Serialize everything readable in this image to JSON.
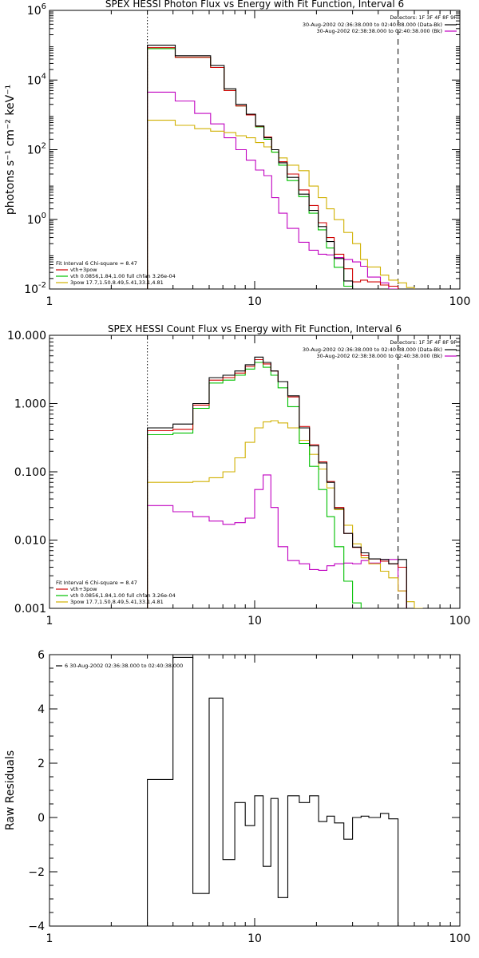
{
  "chart_data": [
    {
      "type": "line",
      "title": "SPEX HESSI Photon Flux vs Energy with Fit Function, Interval 6",
      "ylabel": "photons s⁻¹ cm⁻² keV⁻¹",
      "xscale": "log",
      "yscale": "log",
      "xlim": [
        1,
        100
      ],
      "ylim": [
        0.01,
        1000000
      ],
      "xticks": [
        "1",
        "10",
        "100"
      ],
      "yticks": [
        {
          "base": "10",
          "exp": "6",
          "value": 1000000
        },
        {
          "base": "10",
          "exp": "4",
          "value": 10000
        },
        {
          "base": "10",
          "exp": "2",
          "value": 100
        },
        {
          "base": "10",
          "exp": "0",
          "value": 1
        },
        {
          "base": "10",
          "exp": "-2",
          "value": 0.01
        }
      ],
      "vlines": [
        {
          "x": 3.0,
          "style": "dotted"
        },
        {
          "x": 50,
          "style": "dashed"
        }
      ],
      "legend_topright": {
        "header": "Detectors: 1F 3F 4F 8F 9F",
        "items": [
          {
            "label": "30-Aug-2002 02:36:38.000 to 02:40:38.000 (Data-Bk)",
            "color": "#000000"
          },
          {
            "label": "30-Aug-2002 02:38:38.000 to 02:40:38.000 (Bk)",
            "color": "#c000c0"
          }
        ]
      },
      "legend_bottomleft": {
        "header": "Fit Interval 6   Chi-square = 8.47",
        "items": [
          {
            "label": "vth+3pow",
            "color": "#d00000"
          },
          {
            "label": "vth 0.0856,1.84,1.00  full chfan 3.26e-04",
            "color": "#00c000"
          },
          {
            "label": "3pow 17.7,1.50,8.49,5.41,33.1,4.81",
            "color": "#d0b000"
          }
        ]
      },
      "edges": [
        3.0,
        3.6,
        4.1,
        5.1,
        6.1,
        7.1,
        8.1,
        9.1,
        10.1,
        11.1,
        12.1,
        13.1,
        14.4,
        16.4,
        18.4,
        20.4,
        22.4,
        24.4,
        27.2,
        30.0,
        32.8,
        35.5,
        41.0,
        45.0,
        50.0,
        55.0,
        60.0
      ],
      "series": [
        {
          "name": "data",
          "color": "#000000",
          "values": [
            100000,
            100000,
            50000,
            50000,
            26000,
            5600,
            2000,
            1050,
            480,
            220,
            100,
            42,
            16,
            5.3,
            1.8,
            0.62,
            0.23,
            0.075,
            0.017,
            0.0016,
            null,
            null,
            null,
            null,
            null,
            null
          ]
        },
        {
          "name": "vth+3pow",
          "color": "#d00000",
          "values": [
            85000,
            85000,
            45000,
            45000,
            23000,
            5000,
            1800,
            1000,
            470,
            230,
            100,
            45,
            20,
            7,
            2.5,
            0.8,
            0.3,
            0.1,
            0.038,
            0.016,
            0.018,
            0.016,
            0.013,
            0.012,
            null,
            null
          ]
        },
        {
          "name": "vth",
          "color": "#00c000",
          "values": [
            80000,
            80000,
            45000,
            45000,
            23000,
            5000,
            1800,
            1000,
            450,
            200,
            85,
            36,
            13,
            4.5,
            1.5,
            0.5,
            0.15,
            0.042,
            0.012,
            null,
            null,
            null,
            null,
            null,
            null,
            null
          ]
        },
        {
          "name": "3pow",
          "color": "#d0b000",
          "values": [
            700,
            700,
            500,
            400,
            340,
            310,
            250,
            220,
            160,
            120,
            85,
            58,
            36,
            25,
            9,
            4.2,
            2.0,
            0.98,
            0.42,
            0.2,
            0.07,
            0.043,
            0.025,
            0.018,
            0.015,
            0.011
          ]
        },
        {
          "name": "background",
          "color": "#c000c0",
          "values": [
            4500,
            4500,
            2500,
            1100,
            550,
            220,
            100,
            50,
            26,
            18,
            4.2,
            1.5,
            0.55,
            0.22,
            0.13,
            0.1,
            0.095,
            0.08,
            0.07,
            0.06,
            0.045,
            0.022,
            0.015,
            0.0055,
            null,
            null
          ]
        }
      ]
    },
    {
      "type": "line",
      "title": "SPEX HESSI Count Flux vs Energy with Fit Function, Interval 6",
      "xscale": "log",
      "yscale": "log",
      "xlim": [
        1,
        100
      ],
      "ylim": [
        0.001,
        10
      ],
      "xticks": [
        "1",
        "10",
        "100"
      ],
      "yticks": [
        {
          "label": "10.000",
          "value": 10
        },
        {
          "label": "1.000",
          "value": 1
        },
        {
          "label": "0.100",
          "value": 0.1
        },
        {
          "label": "0.010",
          "value": 0.01
        },
        {
          "label": "0.001",
          "value": 0.001
        }
      ],
      "vlines": [
        {
          "x": 3.0,
          "style": "dotted"
        },
        {
          "x": 50,
          "style": "dashed"
        }
      ],
      "legend_topright": {
        "header": "Detectors: 1F 3F 4F 8F 9F",
        "items": [
          {
            "label": "30-Aug-2002 02:36:38.000 to 02:40:38.000 (Data-Bk)",
            "color": "#000000"
          },
          {
            "label": "30-Aug-2002 02:38:38.000 to 02:40:38.000 (Bk)",
            "color": "#c000c0"
          }
        ]
      },
      "legend_bottomleft": {
        "header": "Fit Interval 6   Chi-square = 8.47",
        "items": [
          {
            "label": "vth+3pow",
            "color": "#d00000"
          },
          {
            "label": "vth 0.0856,1.84,1.00  full chfan 3.26e-04",
            "color": "#00c000"
          },
          {
            "label": "3pow 17.7,1.50,8.49,5.41,33.1,4.81",
            "color": "#d0b000"
          }
        ]
      },
      "edges": [
        3.0,
        4.0,
        5.0,
        6.0,
        7.0,
        8.0,
        9.0,
        10.0,
        11.0,
        12.0,
        13.0,
        14.5,
        16.5,
        18.5,
        20.5,
        22.5,
        24.5,
        27.2,
        30.0,
        33.0,
        36.0,
        41.0,
        45.0,
        50.0,
        55.0,
        60.0,
        66.0
      ],
      "series": [
        {
          "name": "data",
          "color": "#000000",
          "values": [
            0.44,
            0.5,
            1.0,
            2.4,
            2.6,
            3.0,
            3.7,
            4.8,
            4.0,
            3.0,
            2.1,
            1.3,
            0.44,
            0.24,
            0.135,
            0.07,
            0.029,
            0.0125,
            0.0079,
            0.0065,
            0.0053,
            0.0052,
            0.0045,
            0.0052,
            null,
            null
          ]
        },
        {
          "name": "vth+3pow",
          "color": "#d00000",
          "values": [
            0.4,
            0.42,
            0.95,
            2.2,
            2.4,
            2.8,
            3.5,
            4.4,
            3.8,
            3.0,
            2.1,
            1.25,
            0.46,
            0.25,
            0.14,
            0.072,
            0.03,
            0.0125,
            0.0078,
            0.006,
            0.0053,
            0.0049,
            0.0045,
            0.004,
            null,
            null
          ]
        },
        {
          "name": "vth",
          "color": "#00c000",
          "values": [
            0.35,
            0.37,
            0.85,
            2.0,
            2.2,
            2.6,
            3.2,
            4.0,
            3.4,
            2.6,
            1.7,
            0.9,
            0.26,
            0.12,
            0.055,
            0.022,
            0.008,
            0.0025,
            0.0012,
            null,
            null,
            null,
            null,
            null,
            null,
            null
          ]
        },
        {
          "name": "3pow",
          "color": "#d0b000",
          "values": [
            0.07,
            0.07,
            0.072,
            0.082,
            0.1,
            0.16,
            0.27,
            0.44,
            0.54,
            0.56,
            0.52,
            0.44,
            0.29,
            0.18,
            0.11,
            0.058,
            0.028,
            0.0165,
            0.0088,
            0.0055,
            0.0045,
            0.0035,
            0.0028,
            0.0018,
            0.00125,
            0.001
          ]
        },
        {
          "name": "background",
          "color": "#c000c0",
          "values": [
            0.032,
            0.026,
            0.022,
            0.019,
            0.017,
            0.018,
            0.021,
            0.055,
            0.09,
            0.03,
            0.008,
            0.005,
            0.0045,
            0.0037,
            0.0036,
            0.0042,
            0.0045,
            0.0046,
            0.0045,
            0.005,
            0.0046,
            0.0052,
            0.0052,
            0.0018,
            null,
            null
          ]
        }
      ]
    },
    {
      "type": "line",
      "ylabel": "Raw Residuals",
      "xscale": "log",
      "xlim": [
        1,
        100
      ],
      "ylim": [
        -4,
        6
      ],
      "xticks": [
        "1",
        "10",
        "100"
      ],
      "yticks": [
        "6",
        "4",
        "2",
        "0",
        "-2",
        "-4"
      ],
      "legend": {
        "label": "6  30-Aug-2002 02:36:38.000 to 02:40:38.000",
        "color": "#000000"
      },
      "edges": [
        3.0,
        4.0,
        5.0,
        6.0,
        7.0,
        8.0,
        9.0,
        10.0,
        11.0,
        12.0,
        13.0,
        14.5,
        16.5,
        18.5,
        20.5,
        22.5,
        24.5,
        27.2,
        30.0,
        33.0,
        36.0,
        41.0,
        45.0,
        50.0
      ],
      "series": [
        {
          "name": "residuals",
          "color": "#000000",
          "values": [
            1.4,
            5.9,
            -2.8,
            4.4,
            -1.55,
            0.55,
            -0.3,
            0.8,
            -1.8,
            0.7,
            -2.95,
            0.8,
            0.55,
            0.8,
            -0.15,
            0.05,
            -0.2,
            -0.8,
            0.0,
            0.05,
            0.0,
            0.15,
            -0.05
          ]
        }
      ]
    }
  ]
}
